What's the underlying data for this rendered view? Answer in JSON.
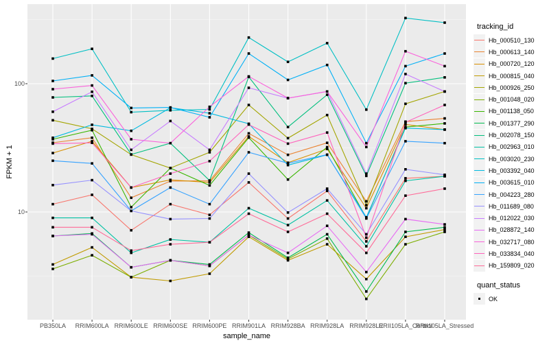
{
  "figure": {
    "x_axis_title": "sample_name",
    "y_axis_title": "FPKM + 1",
    "legend_title": "tracking_id",
    "legend2_title": "quant_status",
    "legend2_items": [
      {
        "label": "OK",
        "marker": "black-square"
      }
    ]
  },
  "style": {
    "panel_bg": "#EBEBEB",
    "grid_major": "#FFFFFF",
    "grid_minor": "#F5F5F5",
    "tick_color": "#333333",
    "tick_label_color": "#4D4D4D",
    "marker_color": "#000000",
    "legend_key_bg": "#F2F2F2"
  },
  "chart_data": {
    "type": "line",
    "title": "",
    "xlabel": "sample_name",
    "ylabel": "FPKM + 1",
    "y_scale": "log10",
    "y_ticks": [
      100,
      10
    ],
    "y_tick_labels": [
      "100",
      "10"
    ],
    "y_minor_ticks": [
      316.2,
      31.62,
      3.162
    ],
    "ylim": [
      1.45,
      417
    ],
    "grid": true,
    "legend_position": "right",
    "point_marker": "square",
    "categories": [
      "PB350LA",
      "RRIM600LA",
      "RRIM600LE",
      "RRIM600SE",
      "RRIM600PE",
      "RRIM901LA",
      "RRIM928BA",
      "RRIM928LA",
      "RRIM928LE",
      "RRII105LA_Control",
      "RRII105LA_Stressed"
    ],
    "series": [
      {
        "name": "Hb_000510_130",
        "color": "#F8766D",
        "values": [
          11.5,
          13.6,
          7.2,
          11.5,
          9.5,
          17.0,
          8.9,
          14.6,
          5.9,
          18.3,
          19.0
        ]
      },
      {
        "name": "Hb_000613_140",
        "color": "#EA8331",
        "values": [
          34.7,
          37.9,
          12.9,
          17.4,
          17.5,
          41.0,
          27.9,
          34.6,
          12.1,
          50.6,
          53.6
        ]
      },
      {
        "name": "Hb_000720_120",
        "color": "#D89000",
        "values": [
          28.8,
          35.6,
          15.5,
          17.8,
          17.0,
          38.8,
          24.2,
          31.0,
          10.7,
          48.2,
          43.9
        ]
      },
      {
        "name": "Hb_000815_040",
        "color": "#C09B00",
        "values": [
          3.9,
          5.3,
          3.1,
          2.9,
          3.3,
          6.4,
          4.2,
          5.6,
          3.0,
          6.4,
          7.3
        ]
      },
      {
        "name": "Hb_000926_250",
        "color": "#A3A500",
        "values": [
          51.9,
          44.5,
          28.0,
          22.0,
          29.2,
          68.3,
          37.6,
          57.0,
          11.3,
          69.7,
          86.9
        ]
      },
      {
        "name": "Hb_001048_020",
        "color": "#7CAE00",
        "values": [
          3.6,
          4.6,
          3.1,
          4.2,
          3.8,
          6.6,
          4.3,
          6.2,
          2.1,
          5.6,
          7.0
        ]
      },
      {
        "name": "Hb_001138_050",
        "color": "#39B600",
        "values": [
          36.9,
          43.4,
          10.9,
          22.0,
          16.1,
          38.0,
          17.9,
          32.0,
          9.0,
          45.9,
          49.0
        ]
      },
      {
        "name": "Hb_001377_290",
        "color": "#00BB4E",
        "values": [
          6.5,
          6.8,
          3.7,
          4.2,
          3.9,
          6.9,
          4.4,
          6.7,
          2.4,
          7.0,
          7.6
        ]
      },
      {
        "name": "Hb_002078_150",
        "color": "#00BF7D",
        "values": [
          78.2,
          80.3,
          28.1,
          34.4,
          17.6,
          113.0,
          45.9,
          82.0,
          19.1,
          101.0,
          112.0
        ]
      },
      {
        "name": "Hb_002963_010",
        "color": "#00C1A3",
        "values": [
          9.0,
          9.0,
          4.8,
          6.1,
          5.8,
          10.7,
          7.9,
          12.3,
          5.4,
          17.5,
          19.0
        ]
      },
      {
        "name": "Hb_003020_230",
        "color": "#00BFC4",
        "values": [
          157.0,
          187.0,
          60.0,
          62.0,
          63.0,
          229.0,
          148.0,
          207.0,
          62.8,
          325.0,
          299.0
        ]
      },
      {
        "name": "Hb_003392_040",
        "color": "#00BAE0",
        "values": [
          37.9,
          47.8,
          42.9,
          65.0,
          58.8,
          48.7,
          23.2,
          27.9,
          9.1,
          45.0,
          43.9
        ]
      },
      {
        "name": "Hb_003615_010",
        "color": "#00B0F6",
        "values": [
          105.0,
          116.0,
          64.7,
          65.3,
          54.7,
          172.0,
          107.0,
          140.0,
          34.4,
          137.0,
          172.0
        ]
      },
      {
        "name": "Hb_004223_280",
        "color": "#35A2FF",
        "values": [
          25.1,
          23.9,
          10.2,
          15.5,
          11.5,
          29.2,
          24.0,
          28.0,
          8.9,
          35.6,
          34.4
        ]
      },
      {
        "name": "Hb_011689_080",
        "color": "#9590FF",
        "values": [
          16.2,
          17.7,
          10.2,
          8.8,
          8.9,
          19.9,
          9.9,
          15.2,
          6.7,
          21.5,
          19.5
        ]
      },
      {
        "name": "Hb_012022_030",
        "color": "#C77CFF",
        "values": [
          60.4,
          86.5,
          30.5,
          51.2,
          30.5,
          92.9,
          77.0,
          87.0,
          19.9,
          119.0,
          86.9
        ]
      },
      {
        "name": "Hb_028872_140",
        "color": "#E76BF3",
        "values": [
          6.5,
          6.7,
          3.7,
          4.2,
          3.8,
          6.6,
          4.8,
          7.8,
          3.4,
          8.8,
          8.0
        ]
      },
      {
        "name": "Hb_032717_080",
        "color": "#FA62DB",
        "values": [
          90.6,
          96.8,
          36.9,
          34.4,
          66.0,
          114.0,
          77.2,
          87.0,
          32.1,
          179.0,
          137.0
        ]
      },
      {
        "name": "Hb_033834_040",
        "color": "#FF62BC",
        "values": [
          34.1,
          34.6,
          15.5,
          19.9,
          24.9,
          48.0,
          34.1,
          41.6,
          6.3,
          50.0,
          68.3
        ]
      },
      {
        "name": "Hb_159809_020",
        "color": "#FF6A98",
        "values": [
          7.6,
          7.6,
          5.0,
          5.6,
          5.8,
          9.7,
          7.0,
          9.7,
          4.8,
          13.4,
          15.2
        ]
      }
    ]
  }
}
